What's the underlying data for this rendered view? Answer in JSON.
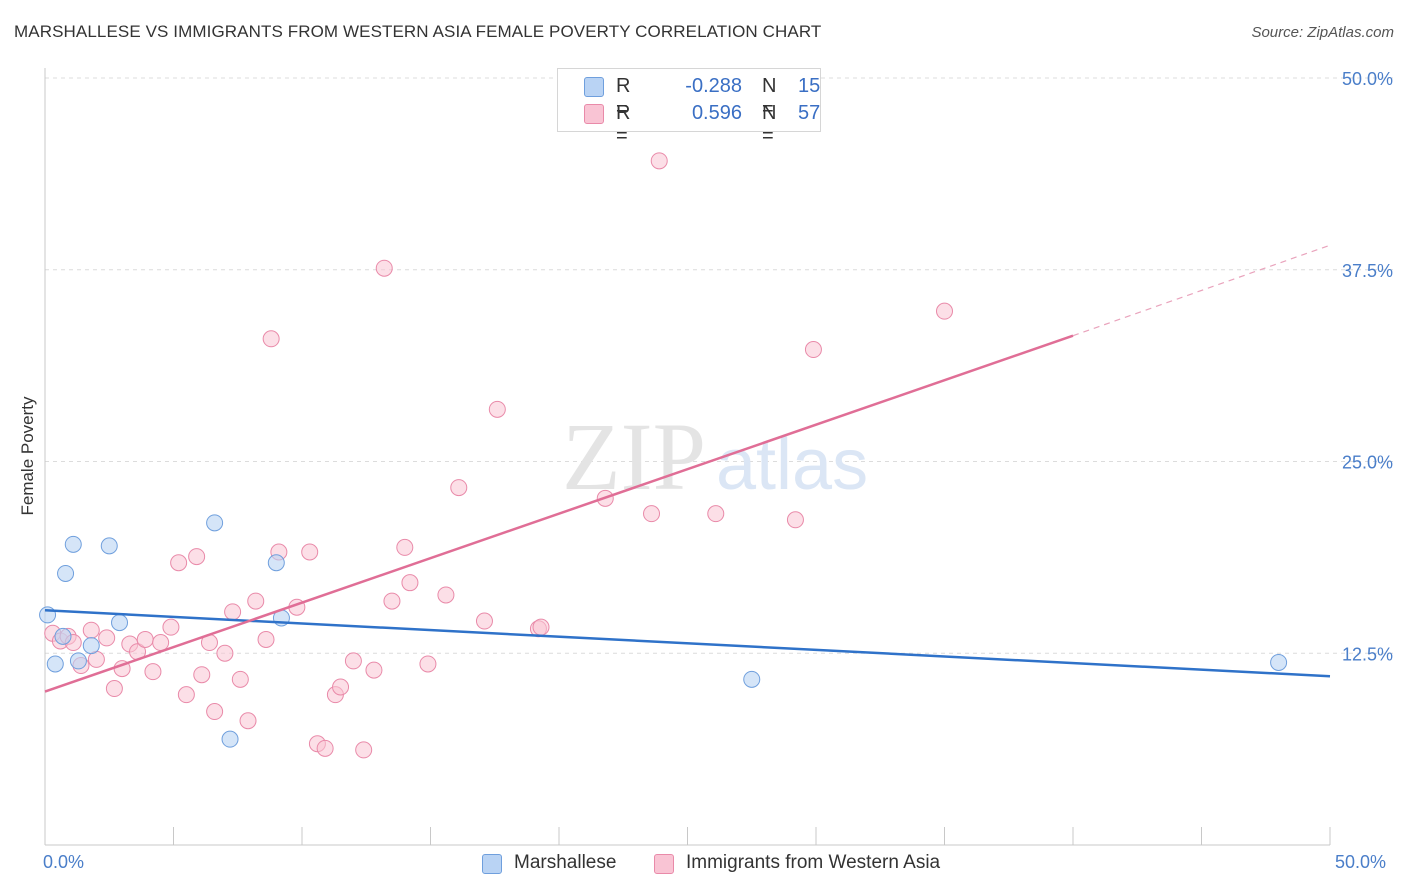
{
  "title": "MARSHALLESE VS IMMIGRANTS FROM WESTERN ASIA FEMALE POVERTY CORRELATION CHART",
  "source": "Source: ZipAtlas.com",
  "watermark": {
    "zip": "ZIP",
    "atlas": "atlas"
  },
  "colors": {
    "blue_fill": "#b9d3f4",
    "blue_stroke": "#6f9fdd",
    "blue_line": "#2f72c9",
    "pink_fill": "#f9c4d4",
    "pink_stroke": "#e98aa9",
    "pink_line": "#e06e96",
    "axis_label": "#4a7ec9",
    "grid": "#dcdcdc"
  },
  "legend_top": [
    {
      "r_label": "R =",
      "r_value": "-0.288",
      "n_label": "N =",
      "n_value": "15"
    },
    {
      "r_label": "R =",
      "r_value": "0.596",
      "n_label": "N =",
      "n_value": "57"
    }
  ],
  "legend_bottom": [
    "Marshallese",
    "Immigrants from Western Asia"
  ],
  "chart_data": {
    "type": "scatter",
    "title": "MARSHALLESE VS IMMIGRANTS FROM WESTERN ASIA FEMALE POVERTY CORRELATION CHART",
    "xlabel": "",
    "ylabel": "Female Poverty",
    "xlim": [
      0,
      50
    ],
    "ylim": [
      0,
      50
    ],
    "x_tick_labels": [
      "0.0%",
      "50.0%"
    ],
    "y_ticks": [
      12.5,
      25.0,
      37.5,
      50.0
    ],
    "y_tick_labels": [
      "12.5%",
      "25.0%",
      "37.5%",
      "50.0%"
    ],
    "grid": true,
    "legend_position": "top-center",
    "series": [
      {
        "name": "Marshallese",
        "r": -0.288,
        "n": 15,
        "points": [
          [
            0.1,
            15.0
          ],
          [
            0.4,
            11.8
          ],
          [
            0.7,
            13.6
          ],
          [
            0.8,
            17.7
          ],
          [
            1.1,
            19.6
          ],
          [
            1.3,
            12.0
          ],
          [
            1.8,
            13.0
          ],
          [
            2.5,
            19.5
          ],
          [
            2.9,
            14.5
          ],
          [
            6.6,
            21.0
          ],
          [
            7.2,
            6.9
          ],
          [
            9.0,
            18.4
          ],
          [
            9.2,
            14.8
          ],
          [
            27.5,
            10.8
          ],
          [
            48.0,
            11.9
          ]
        ],
        "trend": {
          "x_start": 0,
          "x_end": 50,
          "y_start": 15.3,
          "y_end": 11.0
        }
      },
      {
        "name": "Immigrants from Western Asia",
        "r": 0.596,
        "n": 57,
        "points": [
          [
            0.3,
            13.8
          ],
          [
            0.6,
            13.3
          ],
          [
            0.9,
            13.6
          ],
          [
            1.1,
            13.2
          ],
          [
            1.4,
            11.7
          ],
          [
            1.8,
            14.0
          ],
          [
            2.0,
            12.1
          ],
          [
            2.4,
            13.5
          ],
          [
            2.7,
            10.2
          ],
          [
            3.0,
            11.5
          ],
          [
            3.3,
            13.1
          ],
          [
            3.6,
            12.6
          ],
          [
            3.9,
            13.4
          ],
          [
            4.2,
            11.3
          ],
          [
            4.5,
            13.2
          ],
          [
            4.9,
            14.2
          ],
          [
            5.2,
            18.4
          ],
          [
            5.5,
            9.8
          ],
          [
            5.9,
            18.8
          ],
          [
            6.1,
            11.1
          ],
          [
            6.4,
            13.2
          ],
          [
            6.6,
            8.7
          ],
          [
            7.0,
            12.5
          ],
          [
            7.3,
            15.2
          ],
          [
            7.6,
            10.8
          ],
          [
            7.9,
            8.1
          ],
          [
            8.2,
            15.9
          ],
          [
            8.6,
            13.4
          ],
          [
            8.8,
            33.0
          ],
          [
            9.1,
            19.1
          ],
          [
            9.8,
            15.5
          ],
          [
            10.3,
            19.1
          ],
          [
            10.6,
            6.6
          ],
          [
            10.9,
            6.3
          ],
          [
            11.3,
            9.8
          ],
          [
            11.5,
            10.3
          ],
          [
            12.0,
            12.0
          ],
          [
            12.4,
            6.2
          ],
          [
            12.8,
            11.4
          ],
          [
            13.2,
            37.6
          ],
          [
            13.5,
            15.9
          ],
          [
            14.0,
            19.4
          ],
          [
            14.2,
            17.1
          ],
          [
            14.9,
            11.8
          ],
          [
            15.6,
            16.3
          ],
          [
            16.1,
            23.3
          ],
          [
            17.1,
            14.6
          ],
          [
            17.6,
            28.4
          ],
          [
            19.2,
            14.1
          ],
          [
            19.3,
            14.2
          ],
          [
            21.8,
            22.6
          ],
          [
            23.6,
            21.6
          ],
          [
            23.9,
            44.6
          ],
          [
            26.1,
            21.6
          ],
          [
            29.2,
            21.2
          ],
          [
            29.9,
            32.3
          ],
          [
            35.0,
            34.8
          ]
        ],
        "trend": {
          "x_start": 0,
          "x_end": 40,
          "y_start": 10.0,
          "y_end": 33.2,
          "dashed_to_x": 50,
          "dashed_to_y": 39.1
        }
      }
    ]
  }
}
